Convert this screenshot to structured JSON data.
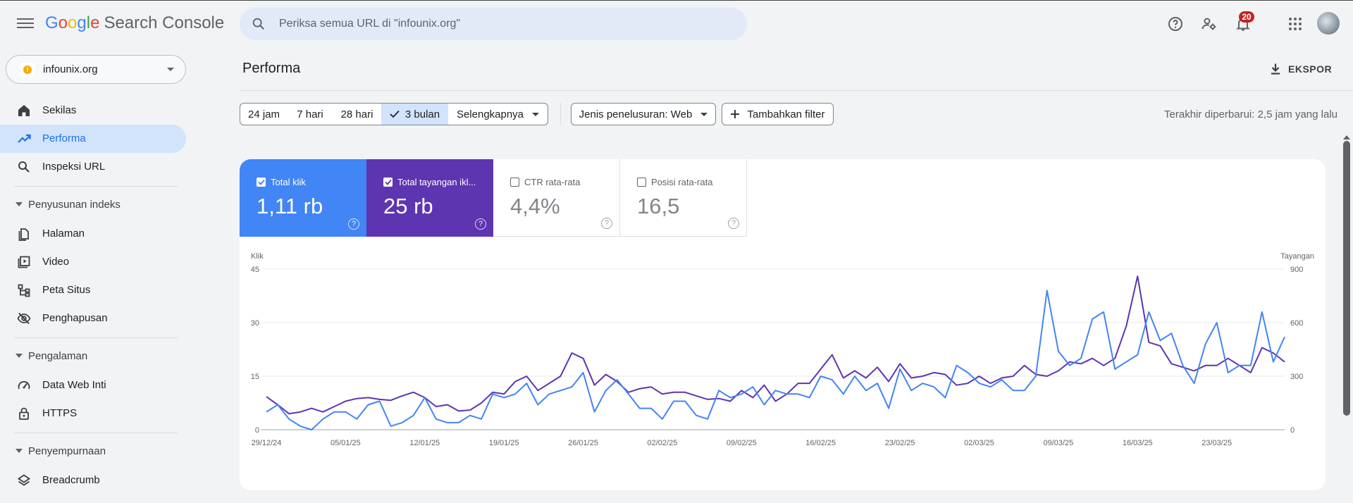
{
  "topbar": {
    "logo": {
      "G": "G",
      "o1": "o",
      "o2": "o",
      "g": "g",
      "l": "l",
      "e": "e",
      "product": "Search Console"
    },
    "search_placeholder": "Periksa semua URL di \"infounix.org\"",
    "notification_count": "20",
    "icons": [
      "menu-icon",
      "search-icon",
      "help-icon",
      "manage-users-icon",
      "notifications-icon",
      "apps-icon"
    ]
  },
  "property": {
    "name": "infounix.org",
    "icon": "domain-property-icon"
  },
  "sidebar": {
    "items": [
      {
        "label": "Sekilas",
        "icon": "home-icon"
      },
      {
        "label": "Performa",
        "icon": "trending-up-icon"
      },
      {
        "label": "Inspeksi URL",
        "icon": "search-icon"
      }
    ],
    "sections": [
      {
        "label": "Penyusunan indeks",
        "items": [
          {
            "label": "Halaman",
            "icon": "pages-icon"
          },
          {
            "label": "Video",
            "icon": "video-icon"
          },
          {
            "label": "Peta Situs",
            "icon": "sitemap-icon"
          },
          {
            "label": "Penghapusan",
            "icon": "removals-icon"
          }
        ]
      },
      {
        "label": "Pengalaman",
        "items": [
          {
            "label": "Data Web Inti",
            "icon": "speed-icon"
          },
          {
            "label": "HTTPS",
            "icon": "lock-icon"
          }
        ]
      },
      {
        "label": "Penyempurnaan",
        "items": [
          {
            "label": "Breadcrumb",
            "icon": "layers-icon"
          }
        ]
      }
    ]
  },
  "main": {
    "title": "Performa",
    "export_label": "EKSPOR",
    "date_ranges": [
      "24 jam",
      "7 hari",
      "28 hari",
      "3 bulan",
      "Selengkapnya"
    ],
    "selected_range": "3 bulan",
    "search_type_filter": "Jenis penelusuran: Web",
    "add_filter_label": "Tambahkan filter",
    "last_updated": "Terakhir diperbarui: 2,5 jam yang lalu",
    "metrics": [
      {
        "label": "Total klik",
        "value": "1,11 rb",
        "checked": true,
        "color": "#4285f4"
      },
      {
        "label": "Total tayangan ikl...",
        "value": "25 rb",
        "checked": true,
        "color": "#5e35b1"
      },
      {
        "label": "CTR rata-rata",
        "value": "4,4%",
        "checked": false
      },
      {
        "label": "Posisi rata-rata",
        "value": "16,5",
        "checked": false
      }
    ]
  },
  "chart_data": {
    "type": "line",
    "left_axis_label": "Klik",
    "right_axis_label": "Tayangan",
    "left_ticks": [
      "0",
      "15",
      "30",
      "45"
    ],
    "right_ticks": [
      "0",
      "300",
      "600",
      "900"
    ],
    "ylim_left": [
      0,
      45
    ],
    "ylim_right": [
      0,
      900
    ],
    "x_tick_labels": [
      "29/12/24",
      "05/01/25",
      "12/01/25",
      "19/01/25",
      "26/01/25",
      "02/02/25",
      "09/02/25",
      "16/02/25",
      "23/02/25",
      "02/03/25",
      "09/03/25",
      "16/03/25",
      "23/03/25"
    ],
    "series": [
      {
        "name": "Klik",
        "axis": "left",
        "color": "#4285f4",
        "values": [
          5,
          7,
          3,
          1,
          0,
          3,
          5,
          5,
          3,
          7,
          8,
          1,
          2,
          4,
          9,
          3,
          2,
          2,
          4,
          3,
          10,
          9,
          10,
          13,
          7,
          10,
          11,
          12,
          16,
          5,
          11,
          14,
          10,
          6,
          6,
          3,
          8,
          8,
          4,
          3,
          11,
          9,
          10,
          12,
          7,
          11,
          10,
          10,
          9,
          15,
          14,
          10,
          15,
          11,
          13,
          6,
          17,
          11,
          13,
          12,
          9,
          18,
          16,
          13,
          12,
          14,
          11,
          11,
          15,
          39,
          22,
          18,
          20,
          31,
          33,
          17,
          19,
          21,
          33,
          25,
          27,
          18,
          13,
          24,
          30,
          16,
          18,
          18,
          33,
          19,
          26
        ]
      },
      {
        "name": "Tayangan",
        "axis": "right",
        "color": "#5e35b1",
        "values": [
          185,
          140,
          90,
          100,
          120,
          100,
          130,
          160,
          175,
          180,
          170,
          165,
          190,
          210,
          180,
          130,
          140,
          105,
          110,
          150,
          210,
          200,
          270,
          300,
          220,
          260,
          300,
          430,
          400,
          250,
          310,
          270,
          210,
          230,
          240,
          200,
          210,
          210,
          190,
          170,
          175,
          160,
          220,
          180,
          250,
          160,
          200,
          260,
          260,
          340,
          420,
          290,
          330,
          290,
          350,
          270,
          370,
          290,
          300,
          320,
          310,
          250,
          260,
          300,
          260,
          290,
          300,
          360,
          310,
          300,
          330,
          380,
          370,
          400,
          360,
          400,
          580,
          860,
          490,
          470,
          370,
          350,
          330,
          360,
          360,
          400,
          360,
          320,
          460,
          430,
          380
        ]
      }
    ]
  }
}
